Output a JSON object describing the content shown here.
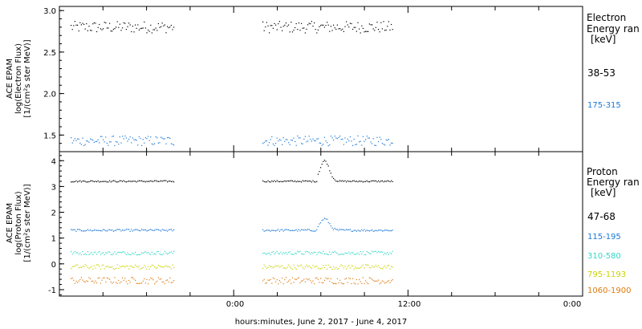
{
  "chart_data": [
    {
      "type": "scatter",
      "ylabel": [
        "ACE EPAM",
        "log(Electron Flux)",
        "[1/(cm²s ster MeV)]"
      ],
      "legend_title": [
        "Electron",
        "Energy ran",
        "[keV]"
      ],
      "ylim": [
        1.3,
        3.05
      ],
      "yticks": [
        "1.5",
        "2.0",
        "2.5",
        "3.0"
      ],
      "series": [
        {
          "name": "38-53",
          "color": "#000000",
          "mean": 2.8,
          "spread": 0.07
        },
        {
          "name": "175-315",
          "color": "#1a78d8",
          "mean": 1.43,
          "spread": 0.06
        }
      ]
    },
    {
      "type": "scatter",
      "ylabel": [
        "ACE EPAM",
        "log(Proton Flux)",
        "[1/(cm²s ster MeV)]"
      ],
      "legend_title": [
        "Proton",
        "Energy ran",
        "[keV]"
      ],
      "ylim": [
        -1.25,
        4.35
      ],
      "yticks": [
        "-1",
        "0",
        "1",
        "2",
        "3",
        "4"
      ],
      "series": [
        {
          "name": "47-68",
          "color": "#000000",
          "mean": 3.2,
          "spread": 0.03,
          "peak": 4.0
        },
        {
          "name": "115-195",
          "color": "#1a78d8",
          "mean": 1.3,
          "spread": 0.04,
          "peak": 1.75
        },
        {
          "name": "310-580",
          "color": "#33d6c8",
          "mean": 0.42,
          "spread": 0.07
        },
        {
          "name": "795-1193",
          "color": "#c8d400",
          "mean": -0.12,
          "spread": 0.09
        },
        {
          "name": "1060-1900",
          "color": "#e07a10",
          "mean": -0.65,
          "spread": 0.13
        }
      ]
    }
  ],
  "x_axis": {
    "ticks": [
      "0:00",
      "12:00",
      "0:00"
    ],
    "label": "hours:minutes, June  2, 2017 - June  4, 2017"
  }
}
